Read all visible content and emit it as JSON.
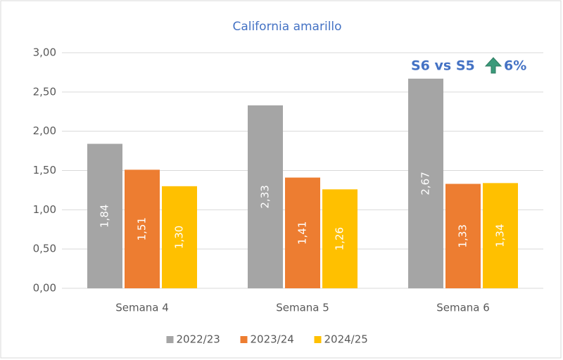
{
  "chart_data": {
    "type": "bar",
    "title": "California amarillo",
    "categories": [
      "Semana 4",
      "Semana 5",
      "Semana 6"
    ],
    "series": [
      {
        "name": "2022/23",
        "color": "#a5a5a5",
        "values": [
          1.84,
          2.33,
          2.67
        ],
        "value_labels": [
          "1,84",
          "2,33",
          "2,67"
        ]
      },
      {
        "name": "2023/24",
        "color": "#ed7d31",
        "values": [
          1.51,
          1.41,
          1.33
        ],
        "value_labels": [
          "1,51",
          "1,41",
          "1,33"
        ]
      },
      {
        "name": "2024/25",
        "color": "#ffc000",
        "values": [
          1.3,
          1.26,
          1.34
        ],
        "value_labels": [
          "1,30",
          "1,26",
          "1,34"
        ]
      }
    ],
    "ylim": [
      0,
      3
    ],
    "yticks": [
      {
        "value": 0,
        "label": "0,00"
      },
      {
        "value": 0.5,
        "label": "0,50"
      },
      {
        "value": 1,
        "label": "1,00"
      },
      {
        "value": 1.5,
        "label": "1,50"
      },
      {
        "value": 2,
        "label": "2,00"
      },
      {
        "value": 2.5,
        "label": "2,50"
      },
      {
        "value": 3,
        "label": "3,00"
      }
    ],
    "grid": true,
    "legend": "bottom",
    "annotation": {
      "text": "S6 vs S5",
      "change": "6%"
    }
  }
}
